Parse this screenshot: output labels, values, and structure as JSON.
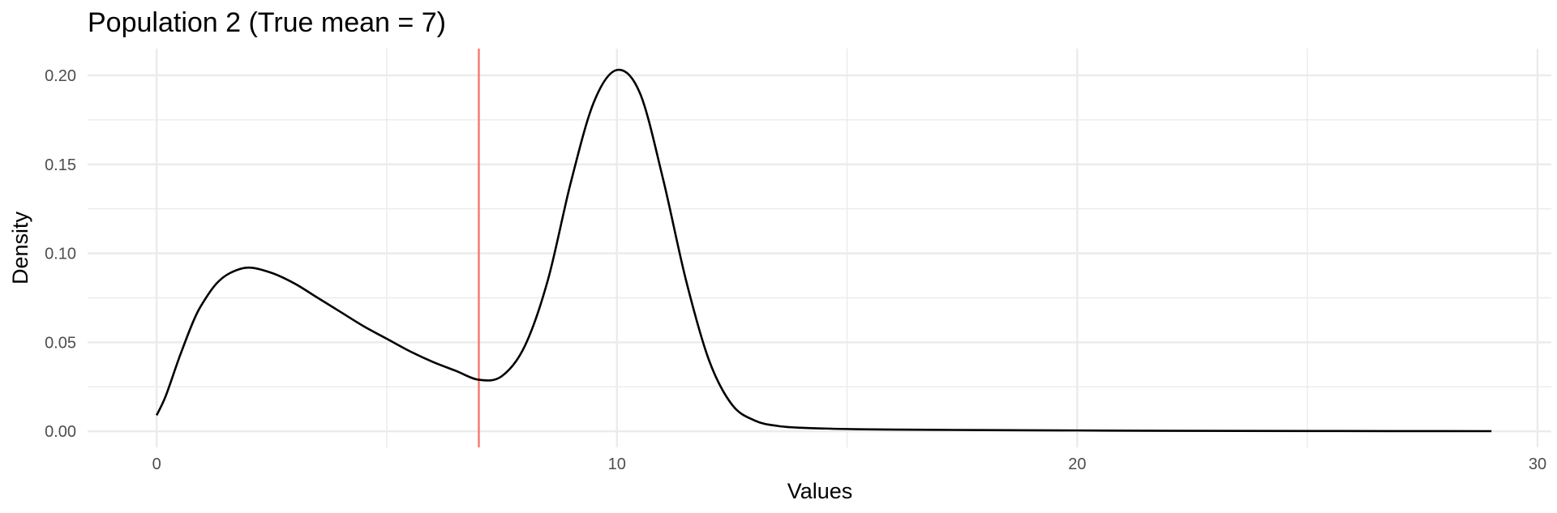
{
  "chart_data": {
    "type": "line",
    "title": "Population 2 (True mean = 7)",
    "xlabel": "Values",
    "ylabel": "Density",
    "xlim": [
      -1.5,
      30.3
    ],
    "ylim": [
      -0.009,
      0.215
    ],
    "x_ticks": [
      0,
      10,
      20,
      30
    ],
    "x_tick_labels": [
      "0",
      "10",
      "20",
      "30"
    ],
    "x_minor_ticks": [
      5,
      15,
      25
    ],
    "y_ticks": [
      0.0,
      0.05,
      0.1,
      0.15,
      0.2
    ],
    "y_tick_labels": [
      "0.00",
      "0.05",
      "0.10",
      "0.15",
      "0.20"
    ],
    "y_minor_ticks": [
      0.025,
      0.075,
      0.125,
      0.175
    ],
    "grid": true,
    "series": [
      {
        "color": "#000000",
        "x": [
          0,
          0.2,
          0.5,
          0.8,
          1.0,
          1.3,
          1.6,
          2.0,
          2.5,
          3.0,
          3.5,
          4.0,
          4.5,
          5.0,
          5.5,
          6.0,
          6.5,
          7.0,
          7.5,
          8.0,
          8.5,
          9.0,
          9.5,
          10.0,
          10.5,
          11.0,
          11.5,
          12.0,
          12.5,
          13.0,
          13.5,
          14.0,
          15,
          16,
          18,
          20,
          22,
          25,
          29
        ],
        "y": [
          0.009,
          0.02,
          0.042,
          0.062,
          0.072,
          0.083,
          0.089,
          0.092,
          0.089,
          0.083,
          0.075,
          0.067,
          0.059,
          0.052,
          0.045,
          0.039,
          0.034,
          0.029,
          0.031,
          0.048,
          0.085,
          0.14,
          0.185,
          0.203,
          0.19,
          0.142,
          0.085,
          0.04,
          0.015,
          0.006,
          0.003,
          0.002,
          0.0013,
          0.001,
          0.0007,
          0.0005,
          0.0003,
          0.0002,
          0.0001
        ]
      }
    ],
    "annotations": [
      {
        "type": "vline",
        "x": 7,
        "color": "#f8766d"
      }
    ]
  }
}
